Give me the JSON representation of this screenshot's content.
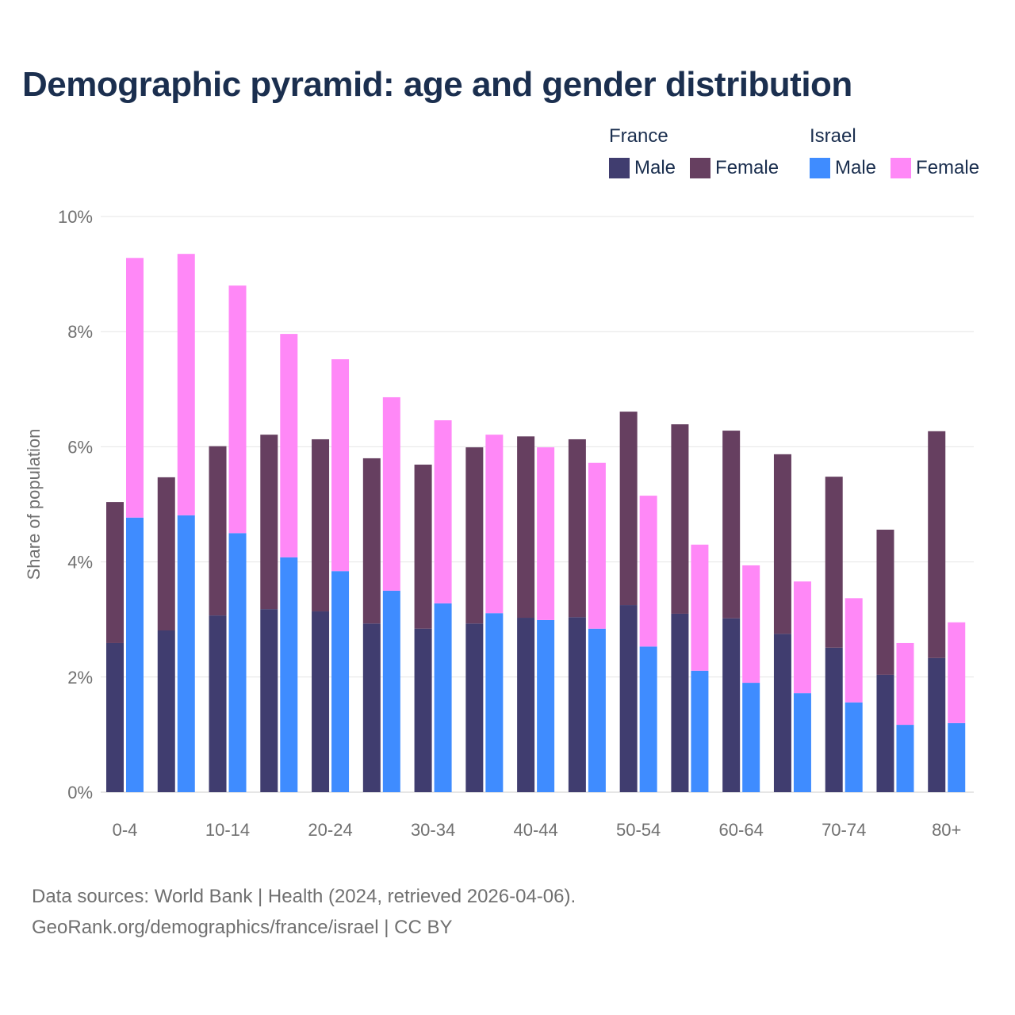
{
  "chart_data": {
    "type": "bar",
    "stacked": true,
    "title": "Demographic pyramid: age and gender distribution",
    "ylabel": "Share of population",
    "xlabel": "",
    "ylim": [
      0,
      10
    ],
    "yticks": [
      "0%",
      "2%",
      "4%",
      "6%",
      "8%",
      "10%"
    ],
    "ytick_values": [
      0,
      2,
      4,
      6,
      8,
      10
    ],
    "categories": [
      "0-4",
      "5-9",
      "10-14",
      "15-19",
      "20-24",
      "25-29",
      "30-34",
      "35-39",
      "40-44",
      "45-49",
      "50-54",
      "55-59",
      "60-64",
      "65-69",
      "70-74",
      "75-79",
      "80+"
    ],
    "xtick_labels_shown": [
      "0-4",
      "10-14",
      "20-24",
      "30-34",
      "40-44",
      "50-54",
      "60-64",
      "70-74",
      "80+"
    ],
    "grid": true,
    "legend_position": "top-right",
    "legend": {
      "groups": [
        {
          "name": "France",
          "items": [
            "Male",
            "Female"
          ]
        },
        {
          "name": "Israel",
          "items": [
            "Male",
            "Female"
          ]
        }
      ]
    },
    "series": [
      {
        "name": "France Male",
        "country": "France",
        "stack": 0,
        "color": "#403d6f",
        "values": [
          2.59,
          2.81,
          3.07,
          3.18,
          3.14,
          2.93,
          2.84,
          2.93,
          3.03,
          3.04,
          3.25,
          3.1,
          3.02,
          2.75,
          2.51,
          2.04,
          2.33
        ]
      },
      {
        "name": "France Female",
        "country": "France",
        "stack": 0,
        "color": "#663f60",
        "values": [
          2.45,
          2.66,
          2.94,
          3.03,
          2.99,
          2.87,
          2.85,
          3.06,
          3.15,
          3.09,
          3.36,
          3.29,
          3.26,
          3.12,
          2.97,
          2.52,
          3.94
        ]
      },
      {
        "name": "Israel Male",
        "country": "Israel",
        "stack": 1,
        "color": "#3f8cff",
        "values": [
          4.77,
          4.81,
          4.5,
          4.08,
          3.84,
          3.5,
          3.28,
          3.11,
          2.99,
          2.84,
          2.53,
          2.11,
          1.9,
          1.72,
          1.56,
          1.17,
          1.2
        ]
      },
      {
        "name": "Israel Female",
        "country": "Israel",
        "stack": 1,
        "color": "#ff88f7",
        "values": [
          4.51,
          4.54,
          4.3,
          3.88,
          3.68,
          3.36,
          3.18,
          3.1,
          3.0,
          2.88,
          2.62,
          2.19,
          2.04,
          1.94,
          1.81,
          1.42,
          1.75
        ]
      }
    ]
  },
  "footer": {
    "line1": "Data sources: World Bank | Health (2024, retrieved 2026-04-06).",
    "line2": "GeoRank.org/demographics/france/israel | CC BY"
  }
}
